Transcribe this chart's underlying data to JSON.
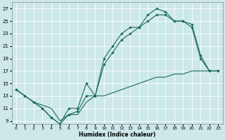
{
  "xlabel": "Humidex (Indice chaleur)",
  "background_color": "#cce8e8",
  "line_color": "#1a6b5a",
  "xlim": [
    -0.5,
    23.5
  ],
  "ylim": [
    8.5,
    28
  ],
  "yticks": [
    9,
    11,
    13,
    15,
    17,
    19,
    21,
    23,
    25,
    27
  ],
  "xticks": [
    0,
    1,
    2,
    3,
    4,
    5,
    6,
    7,
    8,
    9,
    10,
    11,
    12,
    13,
    14,
    15,
    16,
    17,
    18,
    19,
    20,
    21,
    22,
    23
  ],
  "line1_x": [
    0,
    1,
    2,
    3,
    4,
    5,
    6,
    7,
    8,
    9,
    10,
    11,
    12,
    13,
    14,
    15,
    16,
    17,
    18,
    19,
    20,
    21,
    22,
    23
  ],
  "line1_y": [
    14,
    13,
    12,
    11,
    9.5,
    8.5,
    11,
    11,
    15,
    13,
    19,
    21,
    23,
    24,
    24,
    26,
    27,
    26.5,
    25,
    25,
    24,
    19,
    17,
    17
  ],
  "line2_x": [
    0,
    1,
    2,
    3,
    4,
    5,
    6,
    7,
    8,
    9,
    10,
    11,
    12,
    13,
    14,
    15,
    16,
    17,
    18,
    19,
    20,
    21,
    22,
    23
  ],
  "line2_y": [
    14,
    13,
    12,
    11,
    9.5,
    8.5,
    10,
    10.5,
    13,
    13,
    18,
    20,
    22,
    23,
    24,
    25,
    26,
    26,
    25,
    25,
    24.5,
    19.5,
    17,
    17
  ],
  "line3_x": [
    0,
    1,
    2,
    3,
    4,
    5,
    6,
    7,
    8,
    9,
    10,
    11,
    12,
    13,
    14,
    15,
    16,
    17,
    18,
    19,
    20,
    21,
    22,
    23
  ],
  "line3_y": [
    14,
    13,
    12,
    11.5,
    11,
    9,
    10,
    10,
    12,
    13,
    13,
    13.5,
    14,
    14.5,
    15,
    15.5,
    16,
    16,
    16.5,
    16.5,
    17,
    17,
    17,
    17
  ]
}
